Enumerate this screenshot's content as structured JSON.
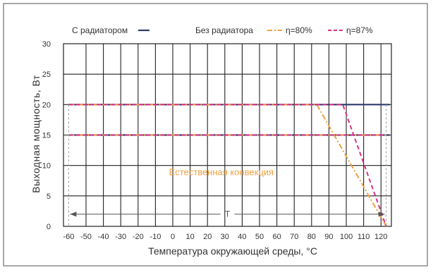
{
  "chart_data": {
    "type": "line",
    "ylabel": "Выходная мощность, Вт",
    "xlabel": "Температура окружающей среды, °С",
    "xlim": [
      -63,
      126
    ],
    "ylim": [
      0,
      30
    ],
    "x_ticks": [
      -60,
      -50,
      -40,
      -30,
      -20,
      -10,
      0,
      10,
      20,
      30,
      40,
      50,
      60,
      70,
      80,
      90,
      100,
      110,
      120
    ],
    "y_ticks": [
      0,
      5,
      10,
      15,
      20,
      25,
      30
    ],
    "grid": true,
    "legend": {
      "placement": "top",
      "group_a_label": "С радиатором",
      "group_b_label": "Без радиатора",
      "entries": [
        {
          "name": "С радиатором",
          "color": "#2e3a6b",
          "dash": "solid"
        },
        {
          "name": "η=80%",
          "color": "#f0a040",
          "dash": "dashdot"
        },
        {
          "name": "η=87%",
          "color": "#d63384",
          "dash": "dashed"
        }
      ]
    },
    "series": [
      {
        "name": "С радиатором",
        "color": "#2e3a6b",
        "dash": "solid",
        "lines": [
          [
            [
              -60,
              20
            ],
            [
              125,
              20
            ]
          ],
          [
            [
              -60,
              15
            ],
            [
              125,
              15
            ]
          ]
        ]
      },
      {
        "name": "η=80%",
        "color": "#f0a040",
        "dash": "dashdot",
        "lines": [
          [
            [
              -60,
              20
            ],
            [
              83,
              20
            ],
            [
              123,
              0
            ]
          ],
          [
            [
              -60,
              15
            ],
            [
              123,
              15
            ]
          ]
        ]
      },
      {
        "name": "η=87%",
        "color": "#d63384",
        "dash": "dashed",
        "lines": [
          [
            [
              -60,
              20
            ],
            [
              98,
              20
            ],
            [
              123,
              0
            ]
          ],
          [
            [
              -60,
              15
            ],
            [
              123,
              15
            ]
          ]
        ]
      }
    ],
    "annotations": {
      "natural_convection": {
        "text": "Естественная конвекция",
        "x": 28,
        "y": 9,
        "color": "#f0a040"
      },
      "range_arrow": {
        "label": "T",
        "x_from": -60,
        "x_to": 123,
        "y": 2
      },
      "limit_lines": [
        -60,
        123
      ]
    }
  }
}
